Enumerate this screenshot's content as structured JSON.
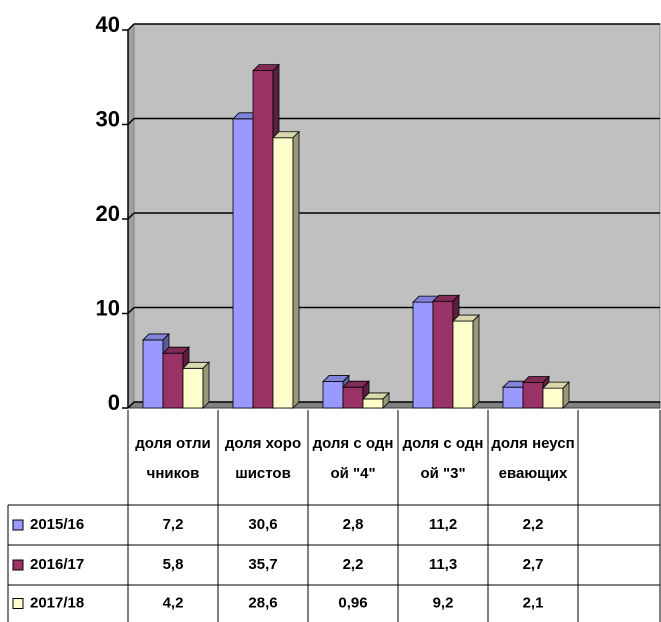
{
  "chart_data": {
    "type": "bar",
    "categories": [
      "доля отличников",
      "доля хорошистов",
      "доля с одной \"4\"",
      "доля с одной \"3\"",
      "доля неуспевающих"
    ],
    "series": [
      {
        "name": "2015/16",
        "color": "#9999ff",
        "values": [
          7.2,
          30.6,
          2.8,
          11.2,
          2.2
        ],
        "value_labels": [
          "7,2",
          "30,6",
          "2,8",
          "11,2",
          "2,2"
        ]
      },
      {
        "name": "2016/17",
        "color": "#993366",
        "values": [
          5.8,
          35.7,
          2.2,
          11.3,
          2.7
        ],
        "value_labels": [
          "5,8",
          "35,7",
          "2,2",
          "11,3",
          "2,7"
        ]
      },
      {
        "name": "2017/18",
        "color": "#ffffcc",
        "values": [
          4.2,
          28.6,
          0.96,
          9.2,
          2.1
        ],
        "value_labels": [
          "4,2",
          "28,6",
          "0,96",
          "9,2",
          "2,1"
        ]
      }
    ],
    "ylim": [
      0,
      40
    ],
    "yticks": [
      0,
      10,
      20,
      30,
      40
    ],
    "grid": true
  }
}
